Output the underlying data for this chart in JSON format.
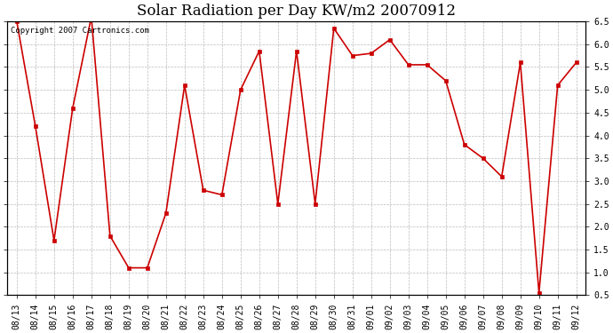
{
  "title": "Solar Radiation per Day KW/m2 20070912",
  "copyright_text": "Copyright 2007 Cartronics.com",
  "labels": [
    "08/13",
    "08/14",
    "08/15",
    "08/16",
    "08/17",
    "08/18",
    "08/19",
    "08/20",
    "08/21",
    "08/22",
    "08/23",
    "08/24",
    "08/25",
    "08/26",
    "08/27",
    "08/28",
    "08/29",
    "08/30",
    "08/31",
    "09/01",
    "09/02",
    "09/03",
    "09/04",
    "09/05",
    "09/06",
    "09/07",
    "09/08",
    "09/09",
    "09/10",
    "09/11",
    "09/12"
  ],
  "values": [
    6.5,
    4.2,
    1.7,
    4.6,
    6.6,
    1.8,
    1.1,
    1.1,
    2.3,
    5.1,
    2.8,
    2.7,
    5.0,
    5.85,
    2.5,
    5.85,
    2.5,
    6.35,
    5.75,
    5.8,
    6.1,
    5.55,
    5.55,
    5.2,
    3.8,
    3.5,
    3.1,
    5.6,
    0.55,
    5.1,
    5.6
  ],
  "line_color": "#cc0000",
  "marker_color": "#cc0000",
  "bg_color": "#ffffff",
  "grid_color": "#bbbbbb",
  "ylim": [
    0.5,
    6.5
  ],
  "yticks": [
    0.5,
    1.0,
    1.5,
    2.0,
    2.5,
    3.0,
    3.5,
    4.0,
    4.5,
    5.0,
    5.5,
    6.0,
    6.5
  ],
  "title_fontsize": 12,
  "copyright_fontsize": 6.5,
  "tick_fontsize": 7,
  "marker_size": 3,
  "line_width": 1.2
}
